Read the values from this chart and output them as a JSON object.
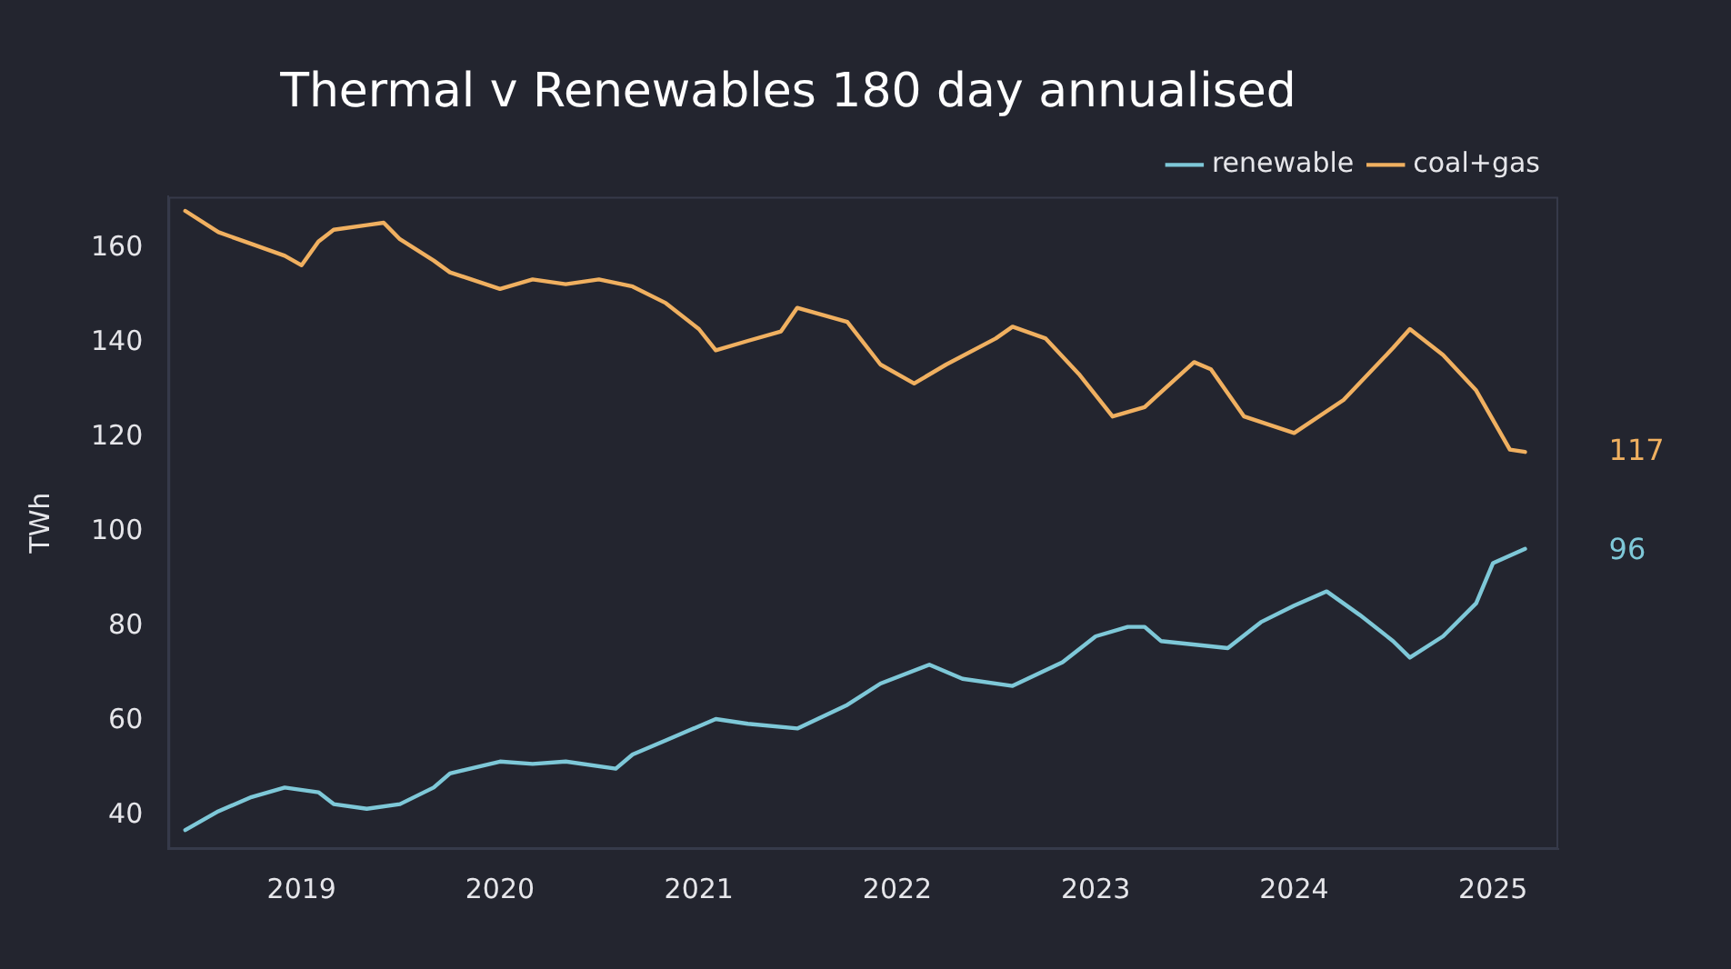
{
  "chart_data": {
    "type": "line",
    "title": "Thermal v Renewables 180 day annualised",
    "ylabel": "TWh",
    "xlim": [
      "2018-05",
      "2025-05"
    ],
    "xticks": [
      "2019",
      "2020",
      "2021",
      "2022",
      "2023",
      "2024",
      "2025"
    ],
    "ylim": [
      33,
      171
    ],
    "yticks": [
      40,
      60,
      80,
      100,
      120,
      140,
      160
    ],
    "grid": false,
    "legend": "top right",
    "marker": "none",
    "line_style": "solid",
    "series": [
      {
        "name": "renewable",
        "color": "#7ec8d8",
        "x": [
          "2018-06",
          "2018-08",
          "2018-10",
          "2018-12",
          "2019-02",
          "2019-03",
          "2019-05",
          "2019-07",
          "2019-09",
          "2019-10",
          "2020-01",
          "2020-03",
          "2020-05",
          "2020-08",
          "2020-09",
          "2020-11",
          "2021-02",
          "2021-04",
          "2021-07",
          "2021-10",
          "2021-12",
          "2022-03",
          "2022-05",
          "2022-08",
          "2022-11",
          "2023-01",
          "2023-03",
          "2023-04",
          "2023-05",
          "2023-09",
          "2023-11",
          "2024-01",
          "2024-03",
          "2024-05",
          "2024-07",
          "2024-08",
          "2024-10",
          "2024-12",
          "2025-01",
          "2025-03"
        ],
        "values": [
          37,
          41,
          44,
          46,
          45,
          42.5,
          41.5,
          42.5,
          46,
          49,
          51.5,
          51,
          51.5,
          50,
          53,
          56,
          60.5,
          59.5,
          58.5,
          63.5,
          68,
          72,
          69,
          67.5,
          72.5,
          78,
          80,
          80,
          77,
          75.5,
          81,
          84.5,
          87.5,
          82.5,
          77,
          73.5,
          78,
          85,
          93.5,
          96.5
        ]
      },
      {
        "name": "coal+gas",
        "color": "#f0b060",
        "x": [
          "2018-06",
          "2018-08",
          "2018-10",
          "2018-12",
          "2019-01",
          "2019-02",
          "2019-03",
          "2019-05",
          "2019-06",
          "2019-07",
          "2019-09",
          "2019-10",
          "2020-01",
          "2020-03",
          "2020-05",
          "2020-07",
          "2020-09",
          "2020-11",
          "2021-01",
          "2021-02",
          "2021-04",
          "2021-06",
          "2021-07",
          "2021-10",
          "2021-12",
          "2022-02",
          "2022-04",
          "2022-07",
          "2022-08",
          "2022-10",
          "2022-12",
          "2023-02",
          "2023-04",
          "2023-07",
          "2023-08",
          "2023-10",
          "2024-01",
          "2024-04",
          "2024-07",
          "2024-08",
          "2024-10",
          "2024-12",
          "2025-02",
          "2025-03"
        ],
        "values": [
          168,
          163.5,
          161,
          158.5,
          156.5,
          161.5,
          164,
          165,
          165.5,
          162,
          157.5,
          155,
          151.5,
          153.5,
          152.5,
          153.5,
          152,
          148.5,
          143,
          138.5,
          140.5,
          142.5,
          147.5,
          144.5,
          135.5,
          131.5,
          135.5,
          141,
          143.5,
          141,
          133.5,
          124.5,
          126.5,
          136,
          134.5,
          124.5,
          121,
          128,
          139,
          143,
          137.5,
          130,
          117.5,
          117
        ]
      }
    ],
    "annotations": [
      {
        "text": "117",
        "x": "2025-03",
        "y": 117
      },
      {
        "text": "96",
        "x": "2025-03",
        "y": 96
      }
    ]
  }
}
